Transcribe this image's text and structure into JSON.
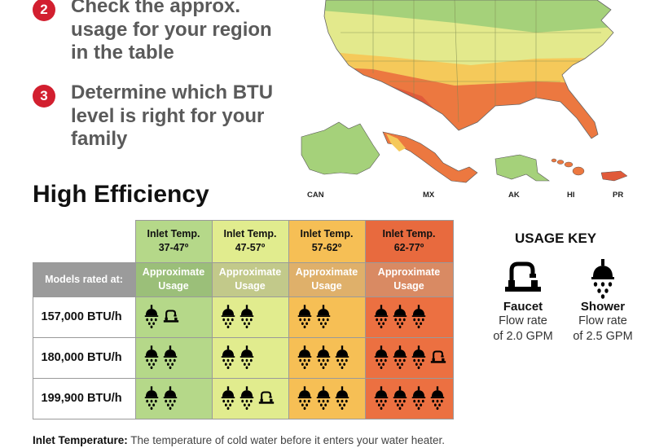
{
  "steps": [
    {
      "number": "2",
      "lines": [
        "Check the approx.",
        "usage for your region",
        "in the table"
      ]
    },
    {
      "number": "3",
      "lines": [
        "Determine which BTU",
        "level is right for your",
        "family"
      ]
    }
  ],
  "map_labels": {
    "can": "CAN",
    "mx": "MX",
    "ak": "AK",
    "hi": "HI",
    "pr": "PR"
  },
  "title": "High Efficiency",
  "table": {
    "inlet_headers": [
      {
        "line1": "Inlet Temp.",
        "line2": "37-47º"
      },
      {
        "line1": "Inlet Temp.",
        "line2": "47-57º"
      },
      {
        "line1": "Inlet Temp.",
        "line2": "57-62º"
      },
      {
        "line1": "Inlet Temp.",
        "line2": "62-77º"
      }
    ],
    "models_label": "Models rated at:",
    "usage_label_line1": "Approximate",
    "usage_label_line2": "Usage",
    "rows": [
      {
        "model": "157,000 BTU/h",
        "usage": [
          {
            "showers": 1,
            "faucets": 1
          },
          {
            "showers": 2,
            "faucets": 0
          },
          {
            "showers": 2,
            "faucets": 0
          },
          {
            "showers": 3,
            "faucets": 0
          }
        ]
      },
      {
        "model": "180,000 BTU/h",
        "usage": [
          {
            "showers": 2,
            "faucets": 0
          },
          {
            "showers": 2,
            "faucets": 0
          },
          {
            "showers": 3,
            "faucets": 0
          },
          {
            "showers": 3,
            "faucets": 1
          }
        ]
      },
      {
        "model": "199,900 BTU/h",
        "usage": [
          {
            "showers": 2,
            "faucets": 0
          },
          {
            "showers": 2,
            "faucets": 1
          },
          {
            "showers": 3,
            "faucets": 0
          },
          {
            "showers": 4,
            "faucets": 0
          }
        ]
      }
    ]
  },
  "usage_key": {
    "title": "USAGE KEY",
    "faucet": {
      "name": "Faucet",
      "line1": "Flow rate",
      "line2": "of 2.0 GPM",
      "icon": "faucet-icon"
    },
    "shower": {
      "name": "Shower",
      "line1": "Flow rate",
      "line2": "of 2.5 GPM",
      "icon": "shower-icon"
    }
  },
  "footnote": {
    "term": "Inlet Temperature:",
    "text": " The temperature of cold water before it enters your water heater."
  },
  "colors": {
    "step_badge": "#d21f2f",
    "temp1": "#b5d889",
    "temp2": "#e1ec8e",
    "temp3": "#f6bf55",
    "temp4": "#ec7041",
    "header_gray": "#9b9b9b"
  }
}
